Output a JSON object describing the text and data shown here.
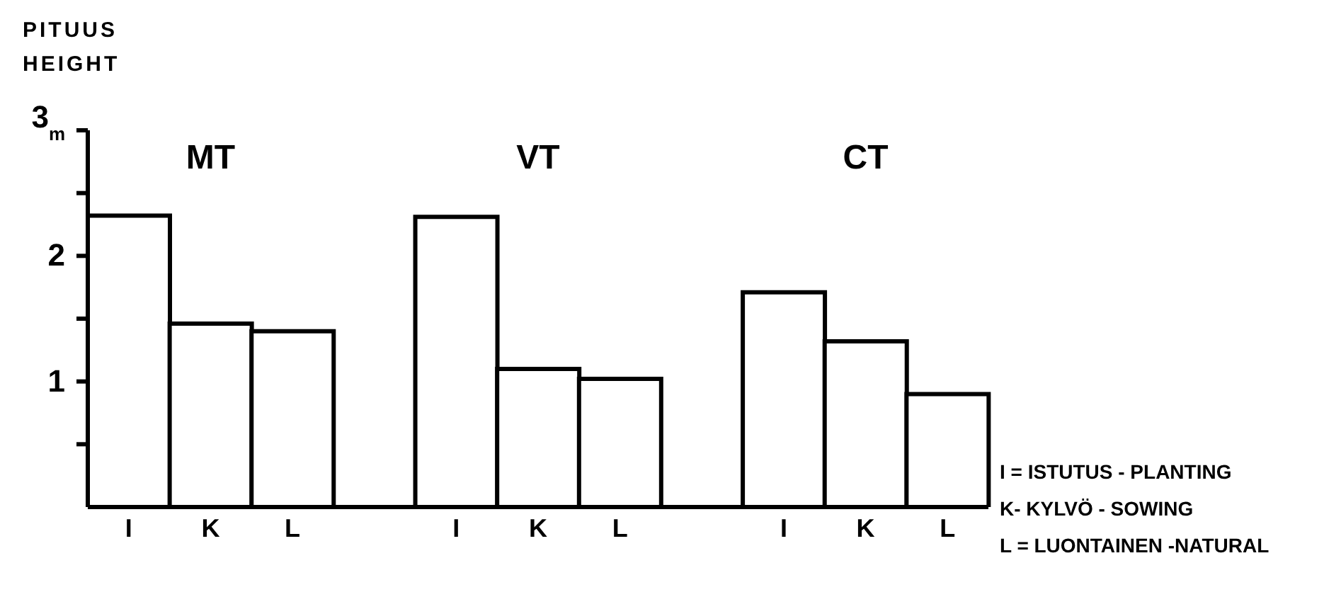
{
  "chart_data": {
    "type": "bar",
    "ylabel": "PITUUS\nHEIGHT",
    "categories": [
      "I",
      "K",
      "L",
      null,
      "I",
      "K",
      "L",
      null,
      "I",
      "K",
      "L"
    ],
    "values": [
      2.32,
      1.46,
      1.4,
      null,
      2.31,
      1.1,
      1.02,
      null,
      1.71,
      1.32,
      0.9
    ],
    "color": "#ffffff",
    "ylim": [
      0,
      3
    ],
    "yticks": [
      {
        "value": 0.5,
        "label": null
      },
      1,
      {
        "value": 1.5,
        "label": null
      },
      2,
      {
        "value": 2.5,
        "label": null
      },
      {
        "value": 3,
        "label": "3$_{m}$"
      }
    ],
    "annotations": [
      "MT",
      "VT",
      "CT",
      "I = ISTUTUS - PLANTING",
      "K- KYLVÖ - SOWING",
      "L = LUONTAINEN -NATURAL"
    ]
  }
}
